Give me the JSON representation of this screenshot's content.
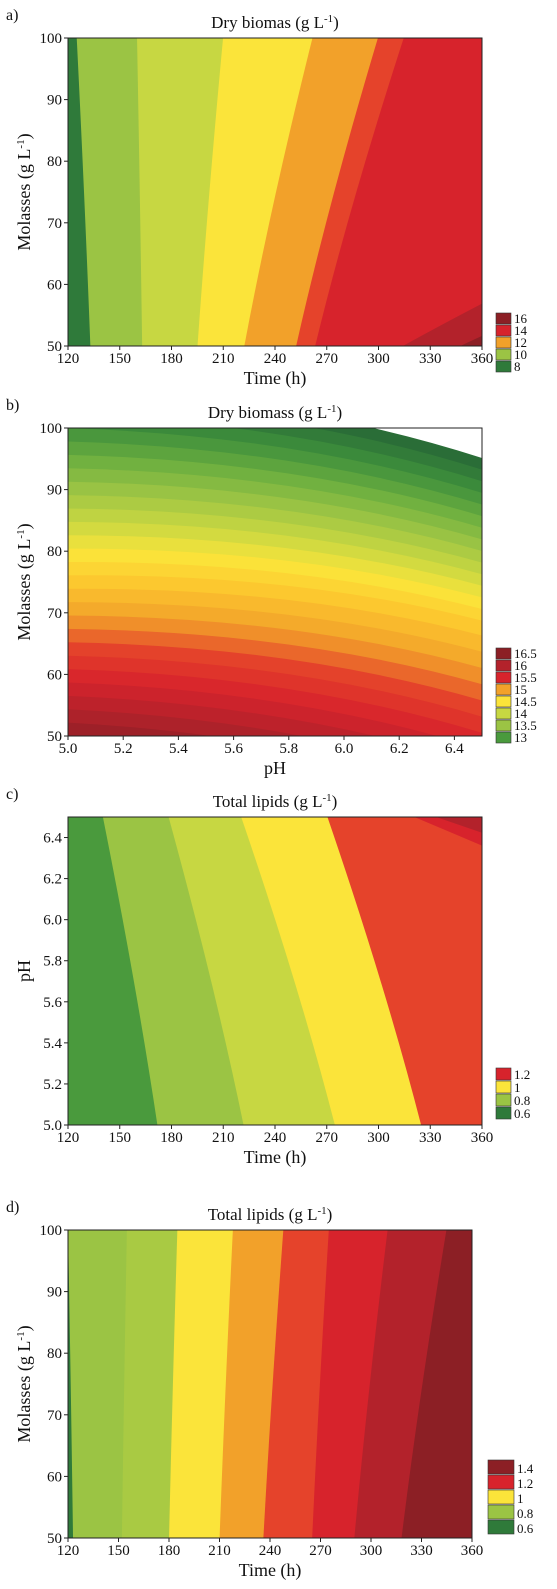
{
  "colors": {
    "dark_green": "#2f7a3a",
    "green": "#4a9a3d",
    "light_green": "#9bc444",
    "yellow_green": "#c7d742",
    "yellow": "#fbe43a",
    "orange": "#f2a12a",
    "red_orange": "#e5432b",
    "red": "#d7232c",
    "dark_red": "#b3222b",
    "maroon": "#8c1f25"
  },
  "chart_data": [
    {
      "type": "heatmap",
      "panel_label": "a)",
      "title": "Dry biomas (g L",
      "title_sup": "-1",
      "title_end": ")",
      "xlabel": "Time (h)",
      "ylabel": "Molasses (g L",
      "ylabel_sup": "-1",
      "ylabel_end": ")",
      "xlim": [
        120,
        360
      ],
      "ylim": [
        50,
        100
      ],
      "xticks": [
        "120",
        "150",
        "180",
        "210",
        "240",
        "270",
        "300",
        "330",
        "360"
      ],
      "yticks": [
        "50",
        "60",
        "70",
        "80",
        "90",
        "100"
      ],
      "legend": [
        "16",
        "14",
        "12",
        "10",
        "8"
      ],
      "legend_colors": [
        "#8c1f25",
        "#d7232c",
        "#f2a12a",
        "#9bc444",
        "#2f7a3a"
      ],
      "bands": [
        {
          "color": "#2f7a3a",
          "top": 125,
          "bottom": 133
        },
        {
          "color": "#9bc444",
          "top": 160,
          "bottom": 163
        },
        {
          "color": "#c7d742",
          "top": 210,
          "bottom": 195
        },
        {
          "color": "#fbe43a",
          "top": 262,
          "bottom": 222
        },
        {
          "color": "#f2a12a",
          "top": 300,
          "bottom": 252
        },
        {
          "color": "#e5432b",
          "top": 315,
          "bottom": 263
        },
        {
          "color": "#d7232c",
          "top": 700,
          "bottom": 312
        },
        {
          "color": "#b3222b",
          "top": 800,
          "bottom": 345
        },
        {
          "color": "#8c1f25",
          "top": 900,
          "bottom": 900
        }
      ]
    },
    {
      "type": "heatmap",
      "panel_label": "b)",
      "title": "Dry biomass (g L",
      "title_sup": "-1",
      "title_end": ")",
      "xlabel": "pH",
      "ylabel": "Molasses (g L",
      "ylabel_sup": "-1",
      "ylabel_end": ")",
      "xlim": [
        5.0,
        6.5
      ],
      "ylim": [
        50,
        100
      ],
      "xticks": [
        "5.0",
        "5.2",
        "5.4",
        "5.6",
        "5.8",
        "6.0",
        "6.2",
        "6.4"
      ],
      "yticks": [
        "50",
        "60",
        "70",
        "80",
        "90",
        "100"
      ],
      "legend": [
        "16.5",
        "16",
        "15.5",
        "15",
        "14.5",
        "14",
        "13.5",
        "13"
      ],
      "legend_colors": [
        "#8c1f25",
        "#b3222b",
        "#d7232c",
        "#f2a12a",
        "#fbe43a",
        "#c7d742",
        "#9bc444",
        "#4a9a3d"
      ]
    },
    {
      "type": "heatmap",
      "panel_label": "c)",
      "title": "Total lipids (g L",
      "title_sup": "-1",
      "title_end": ")",
      "xlabel": "Time (h)",
      "ylabel": "pH",
      "xlim": [
        120,
        360
      ],
      "ylim": [
        5.0,
        6.5
      ],
      "xticks": [
        "120",
        "150",
        "180",
        "210",
        "240",
        "270",
        "300",
        "330",
        "360"
      ],
      "yticks": [
        "5.0",
        "5.2",
        "5.4",
        "5.6",
        "5.8",
        "6.0",
        "6.2",
        "6.4"
      ],
      "legend": [
        "1.2",
        "1",
        "0.8",
        "0.6"
      ],
      "legend_colors": [
        "#d7232c",
        "#fbe43a",
        "#9bc444",
        "#2f7a3a"
      ],
      "bands": [
        {
          "color": "#4a9a3d",
          "top": 140,
          "bottom": 172
        },
        {
          "color": "#9bc444",
          "top": 178,
          "bottom": 222
        },
        {
          "color": "#c7d742",
          "top": 220,
          "bottom": 275
        },
        {
          "color": "#fbe43a",
          "top": 270,
          "bottom": 325
        },
        {
          "color": "#e5432b",
          "top": 318,
          "bottom": 700
        },
        {
          "color": "#d7232c",
          "top": 330,
          "bottom": 800
        },
        {
          "color": "#b3222b",
          "top": 355,
          "bottom": 900
        },
        {
          "color": "#8c1f25",
          "top": 900,
          "bottom": 900
        }
      ]
    },
    {
      "type": "heatmap",
      "panel_label": "d)",
      "title": "Total lipids (g L",
      "title_sup": "-1",
      "title_end": ")",
      "xlabel": "Time (h)",
      "ylabel": "Molasses (g L",
      "ylabel_sup": "-1",
      "ylabel_end": ")",
      "xlim": [
        120,
        360
      ],
      "ylim": [
        50,
        100
      ],
      "xticks": [
        "120",
        "150",
        "180",
        "210",
        "240",
        "270",
        "300",
        "330",
        "360"
      ],
      "yticks": [
        "50",
        "60",
        "70",
        "80",
        "90",
        "100"
      ],
      "legend": [
        "1.4",
        "1.2",
        "1",
        "0.8",
        "0.6"
      ],
      "legend_colors": [
        "#8c1f25",
        "#d7232c",
        "#fbe43a",
        "#9bc444",
        "#2f7a3a"
      ],
      "bands": [
        {
          "color": "#2f7a3a",
          "top": 120,
          "bottom": 123
        },
        {
          "color": "#9bc444",
          "top": 155,
          "bottom": 152
        },
        {
          "color": "#a9ca43",
          "top": 185,
          "bottom": 180
        },
        {
          "color": "#fbe43a",
          "top": 218,
          "bottom": 210
        },
        {
          "color": "#f2a12a",
          "top": 248,
          "bottom": 236
        },
        {
          "color": "#e5432b",
          "top": 275,
          "bottom": 265
        },
        {
          "color": "#d7232c",
          "top": 310,
          "bottom": 290
        },
        {
          "color": "#b3222b",
          "top": 345,
          "bottom": 318
        },
        {
          "color": "#8c1f25",
          "top": 900,
          "bottom": 900
        }
      ]
    }
  ]
}
